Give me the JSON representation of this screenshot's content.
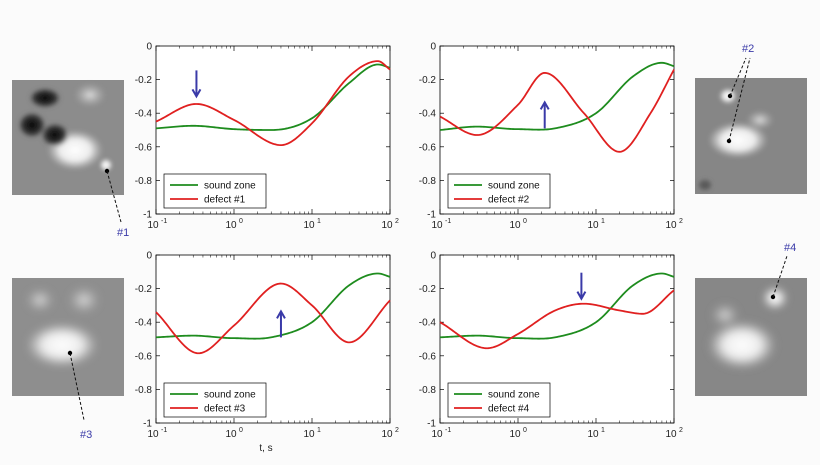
{
  "xlabel": "t, s",
  "colors": {
    "sound": "#1e8c1e",
    "defect": "#e02020",
    "arrow": "#3a3aa8",
    "callout": "#3a3aa8"
  },
  "chart_data": [
    {
      "type": "line",
      "xscale": "log",
      "xlim": [
        0.1,
        100
      ],
      "ylim": [
        -1,
        0
      ],
      "xticks": [
        "10",
        "10",
        "10",
        "10"
      ],
      "xtick_exponents": [
        "-1",
        "0",
        "1",
        "2"
      ],
      "yticks": [
        "0",
        "-0.2",
        "-0.4",
        "-0.6",
        "-0.8",
        "-1"
      ],
      "legend_position": "lower-left",
      "arrow": {
        "direction": "down",
        "x": 0.33,
        "y": -0.3
      },
      "series": [
        {
          "name": "sound zone",
          "x": [
            0.1,
            0.3,
            1,
            3,
            10,
            30,
            70,
            100
          ],
          "y": [
            -0.49,
            -0.475,
            -0.495,
            -0.5,
            -0.43,
            -0.22,
            -0.11,
            -0.13
          ]
        },
        {
          "name": "defect #1",
          "x": [
            0.1,
            0.33,
            1,
            4,
            10,
            30,
            70,
            100
          ],
          "y": [
            -0.45,
            -0.345,
            -0.44,
            -0.59,
            -0.46,
            -0.18,
            -0.09,
            -0.14
          ]
        }
      ]
    },
    {
      "type": "line",
      "xscale": "log",
      "xlim": [
        0.1,
        100
      ],
      "ylim": [
        -1,
        0
      ],
      "xticks": [
        "10",
        "10",
        "10",
        "10"
      ],
      "xtick_exponents": [
        "-1",
        "0",
        "1",
        "2"
      ],
      "yticks": [
        "0",
        "-0.2",
        "-0.4",
        "-0.6",
        "-0.8",
        "-1"
      ],
      "legend_position": "lower-left",
      "arrow": {
        "direction": "up",
        "x": 2.2,
        "y": -0.3
      },
      "series": [
        {
          "name": "sound zone",
          "x": [
            0.1,
            0.3,
            1,
            3,
            10,
            30,
            70,
            100
          ],
          "y": [
            -0.5,
            -0.48,
            -0.495,
            -0.49,
            -0.4,
            -0.18,
            -0.1,
            -0.12
          ]
        },
        {
          "name": "defect #2",
          "x": [
            0.1,
            0.3,
            1,
            2.2,
            7,
            20,
            50,
            100
          ],
          "y": [
            -0.42,
            -0.53,
            -0.35,
            -0.16,
            -0.4,
            -0.63,
            -0.4,
            -0.14
          ]
        }
      ]
    },
    {
      "type": "line",
      "xscale": "log",
      "xlim": [
        0.1,
        100
      ],
      "ylim": [
        -1,
        0
      ],
      "xticks": [
        "10",
        "10",
        "10",
        "10"
      ],
      "xtick_exponents": [
        "-1",
        "0",
        "1",
        "2"
      ],
      "yticks": [
        "0",
        "-0.2",
        "-0.4",
        "-0.6",
        "-0.8",
        "-1"
      ],
      "legend_position": "lower-left",
      "arrow": {
        "direction": "up",
        "x": 4,
        "y": -0.3
      },
      "series": [
        {
          "name": "sound zone",
          "x": [
            0.1,
            0.3,
            1,
            3,
            10,
            30,
            70,
            100
          ],
          "y": [
            -0.49,
            -0.48,
            -0.495,
            -0.49,
            -0.4,
            -0.18,
            -0.11,
            -0.13
          ]
        },
        {
          "name": "defect #3",
          "x": [
            0.1,
            0.35,
            1,
            4,
            10,
            30,
            100
          ],
          "y": [
            -0.34,
            -0.585,
            -0.42,
            -0.17,
            -0.3,
            -0.52,
            -0.27
          ]
        }
      ]
    },
    {
      "type": "line",
      "xscale": "log",
      "xlim": [
        0.1,
        100
      ],
      "ylim": [
        -1,
        0
      ],
      "xticks": [
        "10",
        "10",
        "10",
        "10"
      ],
      "xtick_exponents": [
        "-1",
        "0",
        "1",
        "2"
      ],
      "yticks": [
        "0",
        "-0.2",
        "-0.4",
        "-0.6",
        "-0.8",
        "-1"
      ],
      "legend_position": "lower-left",
      "arrow": {
        "direction": "down",
        "x": 6.5,
        "y": -0.26
      },
      "series": [
        {
          "name": "sound zone",
          "x": [
            0.1,
            0.3,
            1,
            3,
            10,
            30,
            70,
            100
          ],
          "y": [
            -0.49,
            -0.48,
            -0.495,
            -0.49,
            -0.4,
            -0.18,
            -0.11,
            -0.13
          ]
        },
        {
          "name": "defect #4",
          "x": [
            0.1,
            0.4,
            1,
            3,
            7,
            20,
            40,
            100
          ],
          "y": [
            -0.4,
            -0.555,
            -0.47,
            -0.33,
            -0.29,
            -0.33,
            -0.35,
            -0.21
          ]
        }
      ]
    }
  ],
  "thermograms": [
    {
      "label": "#1"
    },
    {
      "label": "#2"
    },
    {
      "label": "#3"
    },
    {
      "label": "#4"
    }
  ]
}
